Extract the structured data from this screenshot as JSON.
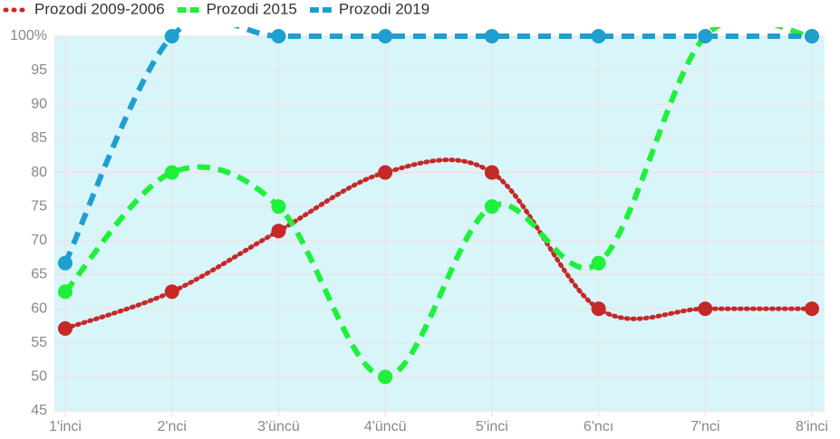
{
  "chart_data": {
    "type": "line",
    "categories": [
      "1'inci",
      "2'nci",
      "3'üncü",
      "4'üncü",
      "5'inci",
      "6'ncı",
      "7'nci",
      "8'inci"
    ],
    "series": [
      {
        "name": "Prozodi 2009-2006",
        "color": "#c62828",
        "dash": "dotted",
        "values": [
          57.1,
          62.5,
          71.4,
          80,
          80,
          60,
          60,
          60
        ]
      },
      {
        "name": "Prozodi 2015",
        "color": "#1ff03a",
        "dash": "dashed",
        "values": [
          62.5,
          80,
          75,
          50,
          75,
          66.7,
          100,
          100
        ]
      },
      {
        "name": "Prozodi 2019",
        "color": "#1e9fd0",
        "dash": "dashed",
        "values": [
          66.7,
          100,
          100,
          100,
          100,
          100,
          100,
          100
        ]
      }
    ],
    "ylim": [
      45,
      100
    ],
    "yticks": [
      45,
      50,
      55,
      60,
      65,
      70,
      75,
      80,
      85,
      90,
      95,
      {
        "value": 100,
        "label": "100%"
      }
    ],
    "grid": true,
    "legend": "top-left",
    "smooth": true
  }
}
